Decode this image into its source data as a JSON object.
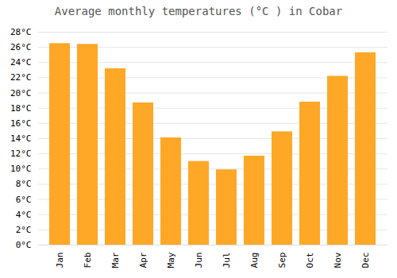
{
  "chart_data": {
    "type": "bar",
    "title": "Average monthly temperatures (°C ) in Cobar",
    "categories": [
      "Jan",
      "Feb",
      "Mar",
      "Apr",
      "May",
      "Jun",
      "Jul",
      "Aug",
      "Sep",
      "Oct",
      "Nov",
      "Dec"
    ],
    "values": [
      26.5,
      26.4,
      23.2,
      18.7,
      14.1,
      11.0,
      9.9,
      11.7,
      14.9,
      18.8,
      22.2,
      25.3
    ],
    "color": "#FFA726",
    "ylim": [
      0,
      28
    ],
    "yticks": [
      {
        "value": 0,
        "label": "0°C"
      },
      {
        "value": 2,
        "label": "2°C"
      },
      {
        "value": 4,
        "label": "4°C"
      },
      {
        "value": 6,
        "label": "6°C"
      },
      {
        "value": 8,
        "label": "8°C"
      },
      {
        "value": 10,
        "label": "10°C"
      },
      {
        "value": 12,
        "label": "12°C"
      },
      {
        "value": 14,
        "label": "14°C"
      },
      {
        "value": 16,
        "label": "16°C"
      },
      {
        "value": 18,
        "label": "18°C"
      },
      {
        "value": 20,
        "label": "20°C"
      },
      {
        "value": 22,
        "label": "22°C"
      },
      {
        "value": 24,
        "label": "24°C"
      },
      {
        "value": 26,
        "label": "26°C"
      },
      {
        "value": 28,
        "label": "28°C"
      }
    ],
    "grid": true
  }
}
